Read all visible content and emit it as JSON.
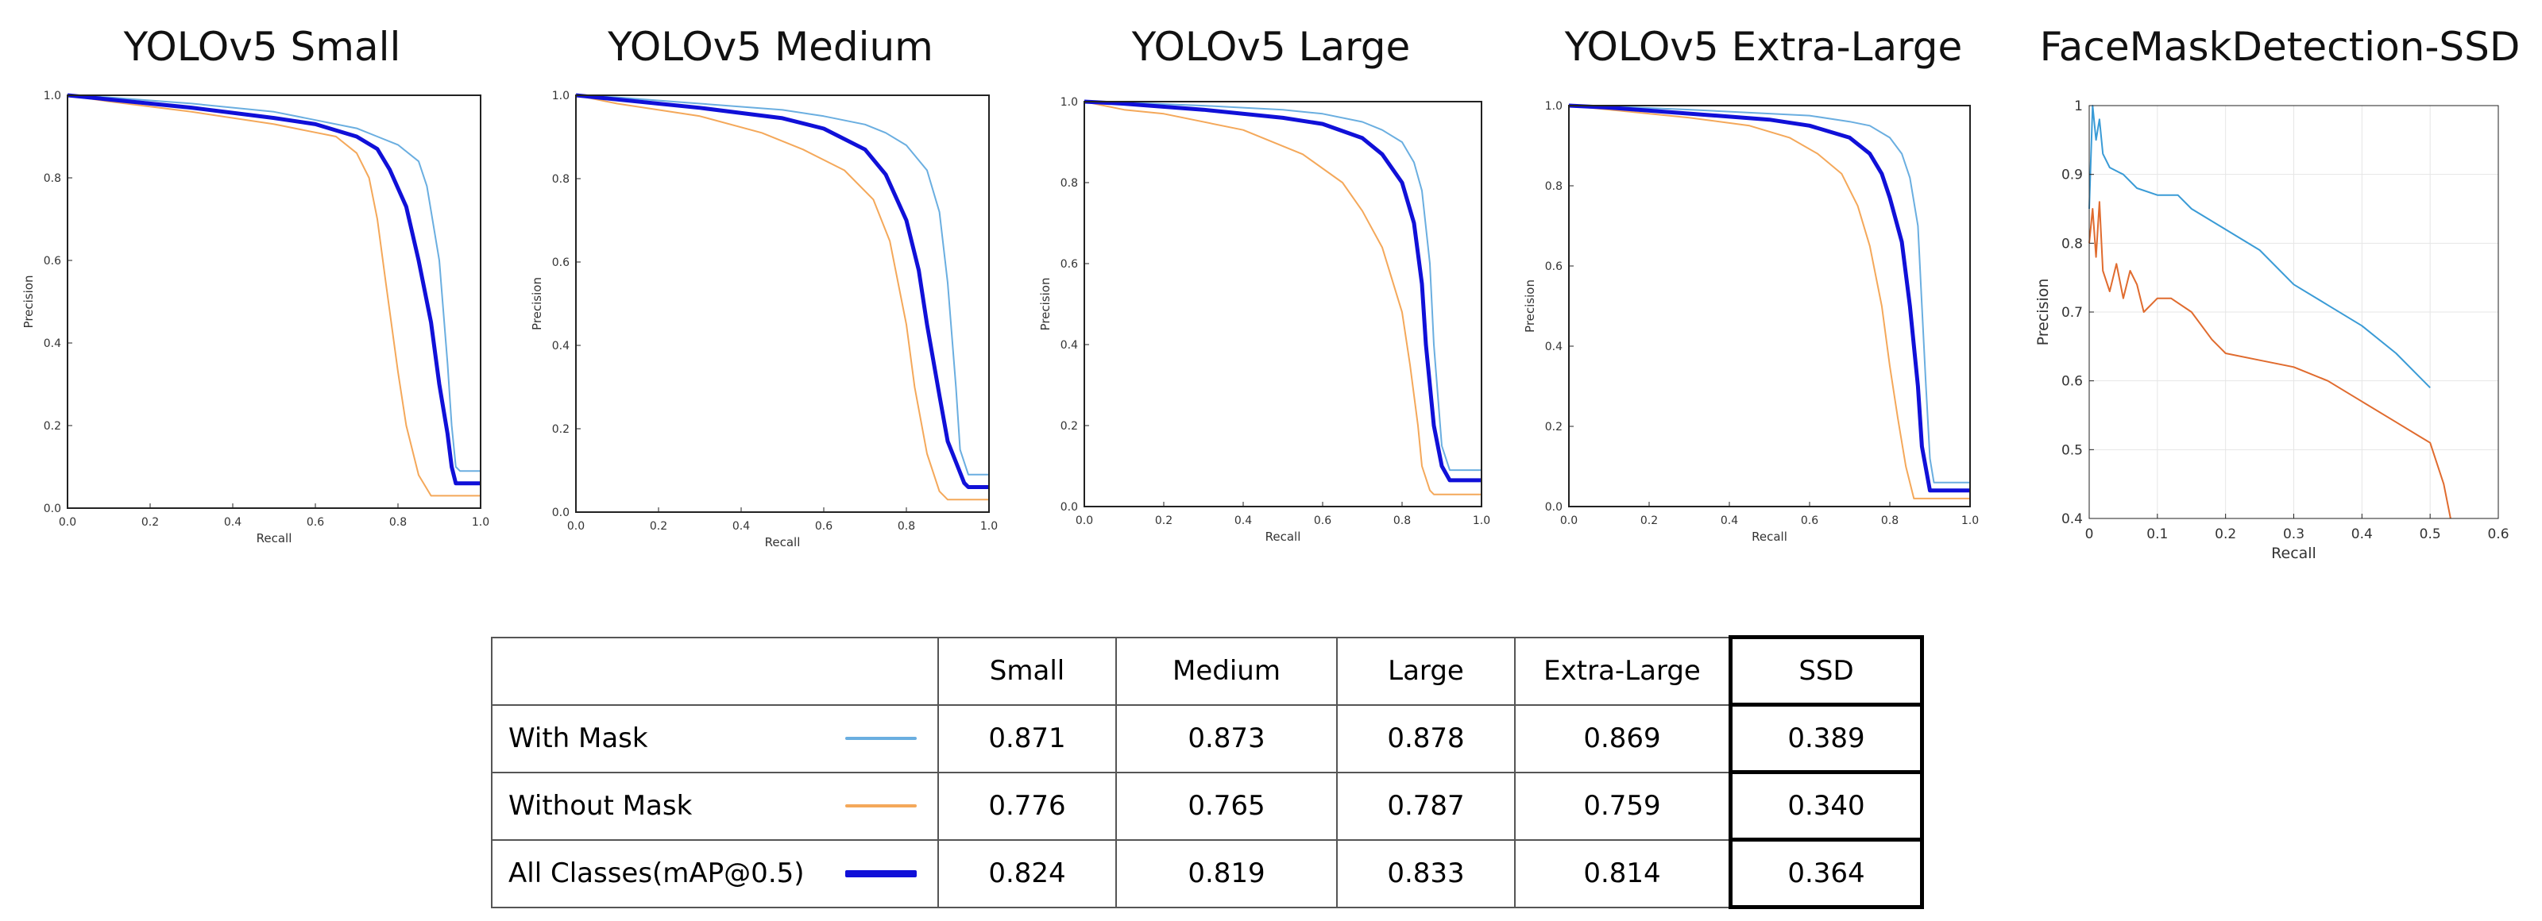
{
  "colors": {
    "with_mask": "#6aaee0",
    "without_mask": "#f4a85a",
    "all_classes": "#1010d8",
    "ssd_with": "#3a9bd6",
    "ssd_without": "#e06b2e"
  },
  "chart_data": [
    {
      "type": "line",
      "title": "YOLOv5 Small",
      "xlabel": "Recall",
      "ylabel": "Precision",
      "xlim": [
        0,
        1
      ],
      "ylim": [
        0,
        1
      ],
      "xticks": [
        "0.0",
        "0.2",
        "0.4",
        "0.6",
        "0.8",
        "1.0"
      ],
      "yticks": [
        "0.0",
        "0.2",
        "0.4",
        "0.6",
        "0.8",
        "1.0"
      ],
      "series": [
        {
          "name": "With Mask",
          "color": "#6aaee0",
          "width": 2,
          "x": [
            0,
            0.1,
            0.3,
            0.5,
            0.6,
            0.7,
            0.75,
            0.8,
            0.85,
            0.87,
            0.9,
            0.92,
            0.93,
            0.94,
            0.95,
            1.0
          ],
          "y": [
            1,
            0.995,
            0.98,
            0.96,
            0.94,
            0.92,
            0.9,
            0.88,
            0.84,
            0.78,
            0.6,
            0.35,
            0.2,
            0.1,
            0.09,
            0.09
          ]
        },
        {
          "name": "Without Mask",
          "color": "#f4a85a",
          "width": 2,
          "x": [
            0,
            0.1,
            0.3,
            0.5,
            0.6,
            0.65,
            0.7,
            0.73,
            0.75,
            0.77,
            0.8,
            0.82,
            0.85,
            0.88,
            0.9,
            1.0
          ],
          "y": [
            1,
            0.985,
            0.96,
            0.93,
            0.91,
            0.9,
            0.86,
            0.8,
            0.7,
            0.55,
            0.33,
            0.2,
            0.08,
            0.03,
            0.03,
            0.03
          ]
        },
        {
          "name": "All Classes(mAP@0.5)",
          "color": "#1010d8",
          "width": 5,
          "x": [
            0,
            0.1,
            0.3,
            0.5,
            0.6,
            0.7,
            0.75,
            0.78,
            0.82,
            0.85,
            0.88,
            0.9,
            0.92,
            0.93,
            0.94,
            0.95,
            1.0
          ],
          "y": [
            1,
            0.99,
            0.97,
            0.945,
            0.93,
            0.9,
            0.87,
            0.82,
            0.73,
            0.6,
            0.45,
            0.3,
            0.18,
            0.1,
            0.06,
            0.06,
            0.06
          ]
        }
      ]
    },
    {
      "type": "line",
      "title": "YOLOv5 Medium",
      "xlabel": "Recall",
      "ylabel": "Precision",
      "xlim": [
        0,
        1
      ],
      "ylim": [
        0,
        1
      ],
      "xticks": [
        "0.0",
        "0.2",
        "0.4",
        "0.6",
        "0.8",
        "1.0"
      ],
      "yticks": [
        "0.0",
        "0.2",
        "0.4",
        "0.6",
        "0.8",
        "1.0"
      ],
      "series": [
        {
          "name": "With Mask",
          "color": "#6aaee0",
          "width": 2,
          "x": [
            0,
            0.1,
            0.3,
            0.5,
            0.6,
            0.7,
            0.75,
            0.8,
            0.85,
            0.88,
            0.9,
            0.92,
            0.93,
            0.95,
            1.0
          ],
          "y": [
            1,
            0.995,
            0.98,
            0.965,
            0.95,
            0.93,
            0.91,
            0.88,
            0.82,
            0.72,
            0.55,
            0.3,
            0.15,
            0.09,
            0.09
          ]
        },
        {
          "name": "Without Mask",
          "color": "#f4a85a",
          "width": 2,
          "x": [
            0,
            0.1,
            0.3,
            0.45,
            0.55,
            0.65,
            0.72,
            0.76,
            0.8,
            0.82,
            0.85,
            0.88,
            0.9,
            1.0
          ],
          "y": [
            1,
            0.98,
            0.95,
            0.91,
            0.87,
            0.82,
            0.75,
            0.65,
            0.45,
            0.3,
            0.14,
            0.05,
            0.03,
            0.03
          ]
        },
        {
          "name": "All Classes(mAP@0.5)",
          "color": "#1010d8",
          "width": 5,
          "x": [
            0,
            0.1,
            0.3,
            0.5,
            0.6,
            0.7,
            0.75,
            0.8,
            0.83,
            0.85,
            0.88,
            0.9,
            0.92,
            0.94,
            0.95,
            1.0
          ],
          "y": [
            1,
            0.99,
            0.97,
            0.945,
            0.92,
            0.87,
            0.81,
            0.7,
            0.58,
            0.45,
            0.28,
            0.17,
            0.12,
            0.07,
            0.06,
            0.06
          ]
        }
      ]
    },
    {
      "type": "line",
      "title": "YOLOv5 Large",
      "xlabel": "Recall",
      "ylabel": "Precision",
      "xlim": [
        0,
        1
      ],
      "ylim": [
        0,
        1
      ],
      "xticks": [
        "0.0",
        "0.2",
        "0.4",
        "0.6",
        "0.8",
        "1.0"
      ],
      "yticks": [
        "0.0",
        "0.2",
        "0.4",
        "0.6",
        "0.8",
        "1.0"
      ],
      "series": [
        {
          "name": "With Mask",
          "color": "#6aaee0",
          "width": 2,
          "x": [
            0,
            0.1,
            0.3,
            0.5,
            0.6,
            0.7,
            0.75,
            0.8,
            0.83,
            0.85,
            0.87,
            0.88,
            0.9,
            0.92,
            1.0
          ],
          "y": [
            1,
            0.998,
            0.99,
            0.98,
            0.97,
            0.95,
            0.93,
            0.9,
            0.85,
            0.78,
            0.6,
            0.4,
            0.15,
            0.09,
            0.09
          ]
        },
        {
          "name": "Without Mask",
          "color": "#f4a85a",
          "width": 2,
          "x": [
            0,
            0.1,
            0.2,
            0.4,
            0.55,
            0.65,
            0.7,
            0.75,
            0.8,
            0.82,
            0.84,
            0.85,
            0.87,
            0.88,
            1.0
          ],
          "y": [
            1,
            0.98,
            0.97,
            0.93,
            0.87,
            0.8,
            0.73,
            0.64,
            0.48,
            0.35,
            0.2,
            0.1,
            0.04,
            0.03,
            0.03
          ]
        },
        {
          "name": "All Classes(mAP@0.5)",
          "color": "#1010d8",
          "width": 5,
          "x": [
            0,
            0.1,
            0.3,
            0.5,
            0.6,
            0.7,
            0.75,
            0.8,
            0.83,
            0.85,
            0.86,
            0.88,
            0.9,
            0.92,
            1.0
          ],
          "y": [
            1,
            0.995,
            0.98,
            0.96,
            0.945,
            0.91,
            0.87,
            0.8,
            0.7,
            0.55,
            0.4,
            0.2,
            0.1,
            0.065,
            0.065
          ]
        }
      ]
    },
    {
      "type": "line",
      "title": "YOLOv5 Extra-Large",
      "xlabel": "Recall",
      "ylabel": "Precision",
      "xlim": [
        0,
        1
      ],
      "ylim": [
        0,
        1
      ],
      "xticks": [
        "0.0",
        "0.2",
        "0.4",
        "0.6",
        "0.8",
        "1.0"
      ],
      "yticks": [
        "0.0",
        "0.2",
        "0.4",
        "0.6",
        "0.8",
        "1.0"
      ],
      "series": [
        {
          "name": "With Mask",
          "color": "#6aaee0",
          "width": 2,
          "x": [
            0,
            0.1,
            0.3,
            0.5,
            0.6,
            0.7,
            0.75,
            0.8,
            0.83,
            0.85,
            0.87,
            0.88,
            0.89,
            0.9,
            0.91,
            1.0
          ],
          "y": [
            1,
            0.998,
            0.99,
            0.98,
            0.975,
            0.96,
            0.95,
            0.92,
            0.88,
            0.82,
            0.7,
            0.5,
            0.3,
            0.12,
            0.06,
            0.06
          ]
        },
        {
          "name": "Without Mask",
          "color": "#f4a85a",
          "width": 2,
          "x": [
            0,
            0.1,
            0.3,
            0.45,
            0.55,
            0.62,
            0.68,
            0.72,
            0.75,
            0.78,
            0.8,
            0.82,
            0.84,
            0.86,
            1.0
          ],
          "y": [
            1,
            0.99,
            0.97,
            0.95,
            0.92,
            0.88,
            0.83,
            0.75,
            0.65,
            0.5,
            0.35,
            0.22,
            0.1,
            0.02,
            0.02
          ]
        },
        {
          "name": "All Classes(mAP@0.5)",
          "color": "#1010d8",
          "width": 5,
          "x": [
            0,
            0.1,
            0.3,
            0.5,
            0.6,
            0.7,
            0.75,
            0.78,
            0.8,
            0.83,
            0.85,
            0.87,
            0.88,
            0.9,
            0.93,
            1.0
          ],
          "y": [
            1,
            0.995,
            0.98,
            0.965,
            0.95,
            0.92,
            0.88,
            0.83,
            0.77,
            0.66,
            0.5,
            0.3,
            0.15,
            0.04,
            0.04,
            0.04
          ]
        }
      ]
    },
    {
      "type": "line",
      "title": "FaceMaskDetection-SSD",
      "xlabel": "Recall",
      "ylabel": "Precision",
      "xlim": [
        0,
        0.6
      ],
      "ylim": [
        0.4,
        1
      ],
      "xticks": [
        "0",
        "0.1",
        "0.2",
        "0.3",
        "0.4",
        "0.5",
        "0.6"
      ],
      "yticks": [
        "0.4",
        "0.5",
        "0.6",
        "0.7",
        "0.8",
        "0.9",
        "1"
      ],
      "grid": true,
      "series": [
        {
          "name": "With Mask",
          "color": "#3a9bd6",
          "width": 2,
          "x": [
            0,
            0.005,
            0.01,
            0.015,
            0.02,
            0.03,
            0.05,
            0.07,
            0.1,
            0.13,
            0.15,
            0.2,
            0.25,
            0.3,
            0.35,
            0.4,
            0.45,
            0.5
          ],
          "y": [
            0.85,
            1.0,
            0.95,
            0.98,
            0.93,
            0.91,
            0.9,
            0.88,
            0.87,
            0.87,
            0.85,
            0.82,
            0.79,
            0.74,
            0.71,
            0.68,
            0.64,
            0.59
          ]
        },
        {
          "name": "Without Mask",
          "color": "#e06b2e",
          "width": 2,
          "x": [
            0,
            0.005,
            0.01,
            0.015,
            0.02,
            0.03,
            0.04,
            0.05,
            0.06,
            0.07,
            0.08,
            0.1,
            0.12,
            0.15,
            0.18,
            0.2,
            0.25,
            0.3,
            0.35,
            0.4,
            0.45,
            0.5,
            0.52,
            0.53
          ],
          "y": [
            0.8,
            0.85,
            0.78,
            0.86,
            0.76,
            0.73,
            0.77,
            0.72,
            0.76,
            0.74,
            0.7,
            0.72,
            0.72,
            0.7,
            0.66,
            0.64,
            0.63,
            0.62,
            0.6,
            0.57,
            0.54,
            0.51,
            0.45,
            0.4
          ]
        }
      ]
    }
  ],
  "table": {
    "headers": [
      "",
      "Small",
      "Medium",
      "Large",
      "Extra-Large",
      "SSD"
    ],
    "rows": [
      {
        "label": "With Mask",
        "values": [
          "0.871",
          "0.873",
          "0.878",
          "0.869",
          "0.389"
        ]
      },
      {
        "label": "Without Mask",
        "values": [
          "0.776",
          "0.765",
          "0.787",
          "0.759",
          "0.340"
        ]
      },
      {
        "label": "All Classes(mAP@0.5)",
        "values": [
          "0.824",
          "0.819",
          "0.833",
          "0.814",
          "0.364"
        ]
      }
    ]
  }
}
